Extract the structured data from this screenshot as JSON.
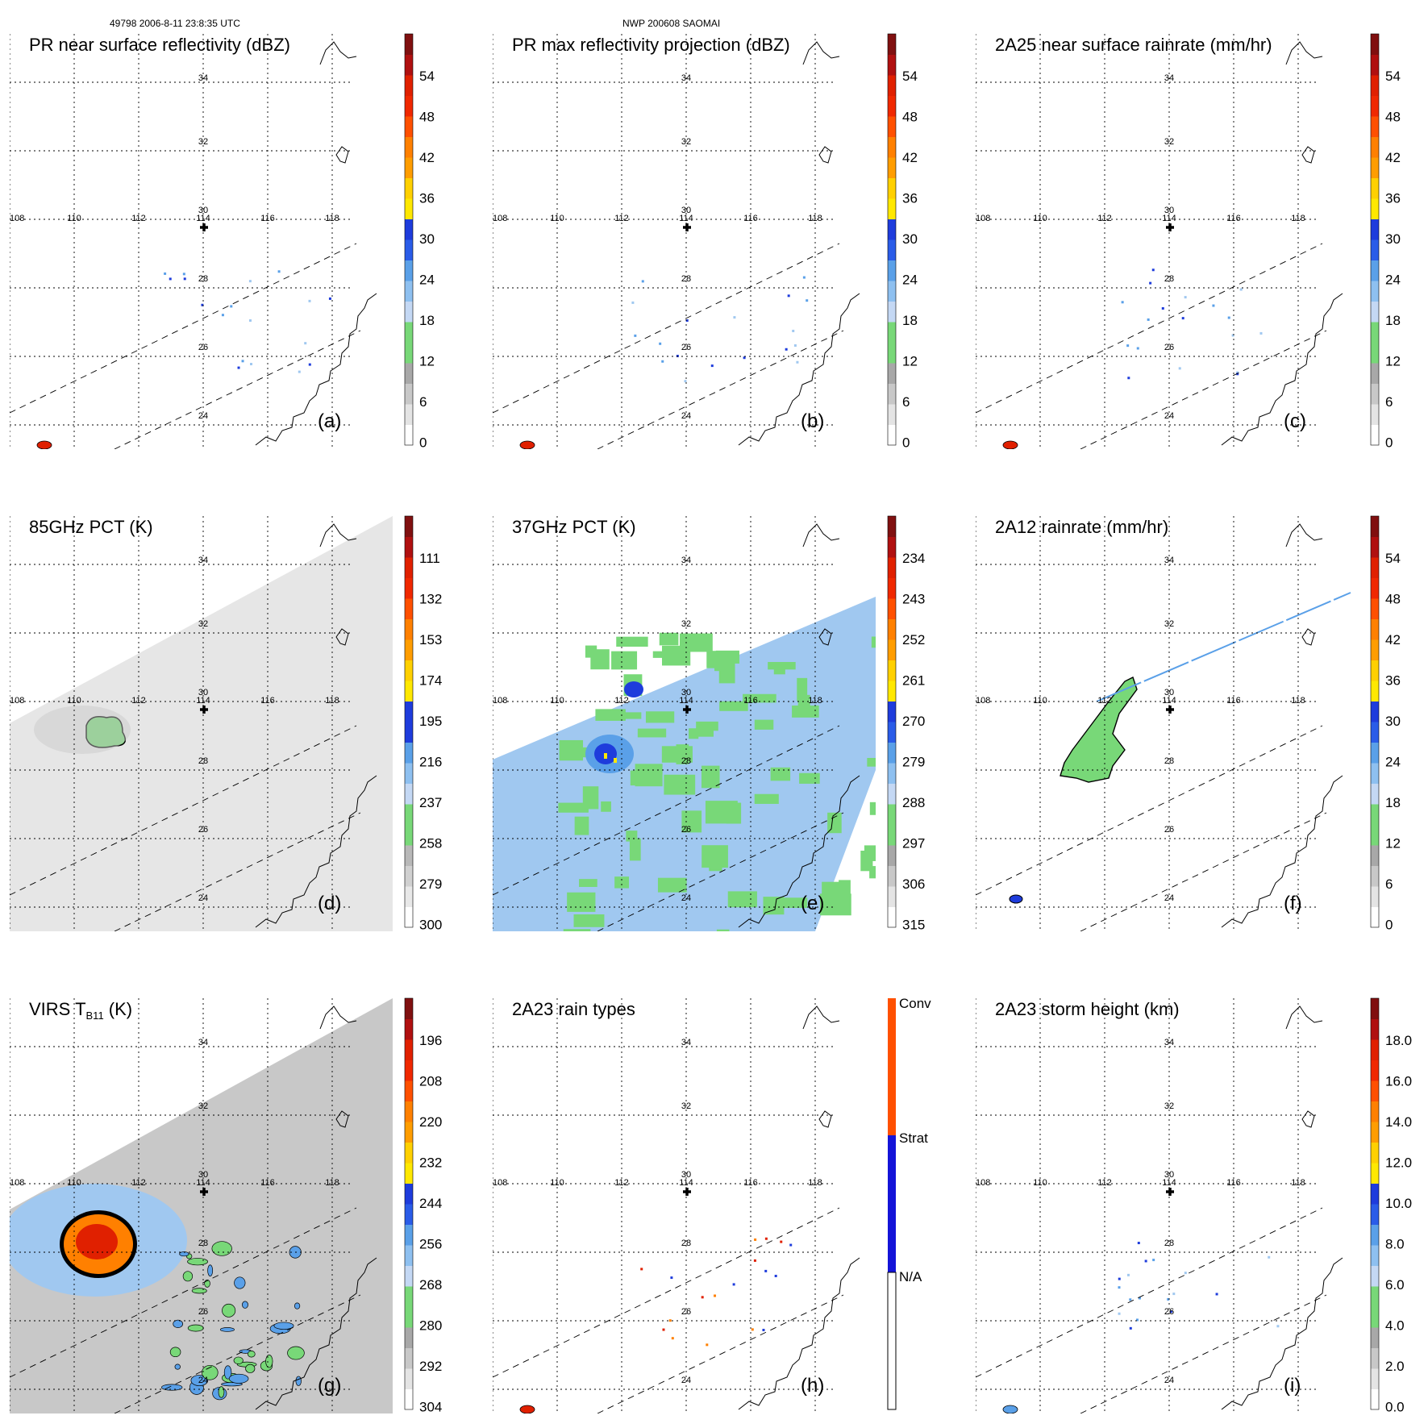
{
  "header": {
    "left": "49798 2006-8-11 23:8:35 UTC",
    "center": "NWP 200608 SAOMAI"
  },
  "map": {
    "lon_labels": [
      "108",
      "110",
      "112",
      "114",
      "116",
      "118"
    ],
    "lat_labels": [
      "34",
      "32",
      "30",
      "28",
      "26",
      "24"
    ]
  },
  "panels": [
    {
      "id": "a",
      "title": "PR near surface reflectivity (dBZ)",
      "label": "(a)",
      "colorbar": {
        "ticks": [
          "54",
          "48",
          "42",
          "36",
          "30",
          "24",
          "18",
          "12",
          "6",
          "0"
        ]
      },
      "field": "pr_surface"
    },
    {
      "id": "b",
      "title": "PR max reflectivity projection (dBZ)",
      "label": "(b)",
      "colorbar": {
        "ticks": [
          "54",
          "48",
          "42",
          "36",
          "30",
          "24",
          "18",
          "12",
          "6",
          "0"
        ]
      },
      "field": "pr_max"
    },
    {
      "id": "c",
      "title": "2A25 near surface rainrate (mm/hr)",
      "label": "(c)",
      "colorbar": {
        "ticks": [
          "54",
          "48",
          "42",
          "36",
          "30",
          "24",
          "18",
          "12",
          "6",
          "0"
        ]
      },
      "field": "rain_2a25"
    },
    {
      "id": "d",
      "title": "85GHz PCT (K)",
      "label": "(d)",
      "colorbar": {
        "ticks": [
          "111",
          "132",
          "153",
          "174",
          "195",
          "216",
          "237",
          "258",
          "279",
          "300"
        ]
      },
      "field": "pct85"
    },
    {
      "id": "e",
      "title": "37GHz PCT (K)",
      "label": "(e)",
      "colorbar": {
        "ticks": [
          "234",
          "243",
          "252",
          "261",
          "270",
          "279",
          "288",
          "297",
          "306",
          "315"
        ]
      },
      "field": "pct37"
    },
    {
      "id": "f",
      "title": "2A12 rainrate (mm/hr)",
      "label": "(f)",
      "colorbar": {
        "ticks": [
          "54",
          "48",
          "42",
          "36",
          "30",
          "24",
          "18",
          "12",
          "6",
          "0"
        ]
      },
      "field": "rain_2a12"
    },
    {
      "id": "g",
      "title": "VIRS T",
      "title_sub": "B11",
      "title_unit": " (K)",
      "label": "(g)",
      "colorbar": {
        "ticks": [
          "196",
          "208",
          "220",
          "232",
          "244",
          "256",
          "268",
          "280",
          "292",
          "304"
        ]
      },
      "field": "virs"
    },
    {
      "id": "h",
      "title": "2A23 rain types",
      "label": "(h)",
      "colorbar": {
        "kind": "categorical",
        "ticks": [
          "Conv",
          "Strat",
          "N/A"
        ]
      },
      "field": "raintype"
    },
    {
      "id": "i",
      "title": "2A23 storm height (km)",
      "label": "(i)",
      "colorbar": {
        "ticks": [
          "18.0",
          "16.0",
          "14.0",
          "12.0",
          "10.0",
          "8.0",
          "6.0",
          "4.0",
          "2.0",
          "0.0"
        ]
      },
      "field": "storm_height"
    }
  ],
  "colors": {
    "grid": "#000000",
    "green": "#78d878",
    "light_blue": "#a0c8f0",
    "mid_blue": "#5aa0e8",
    "blue": "#1e3cdc",
    "yellow": "#ffe800",
    "orange": "#ff8000",
    "red": "#e02000",
    "dark_red": "#801010",
    "gray": "#b8b8b8"
  }
}
